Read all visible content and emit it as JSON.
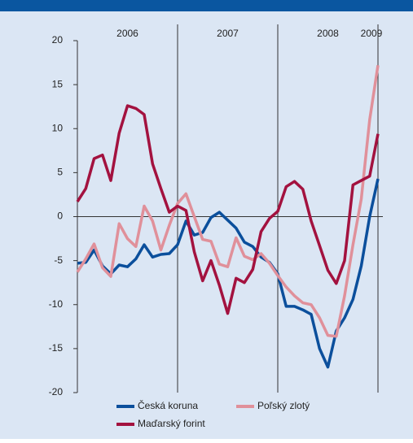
{
  "chart_data": {
    "type": "line",
    "categories": [
      null,
      null,
      null,
      null,
      null,
      null,
      null,
      null,
      null,
      null,
      null,
      null,
      null,
      null,
      null,
      null,
      null,
      null,
      null,
      null,
      null,
      null,
      null,
      null,
      null,
      null,
      null,
      null,
      null,
      null,
      null,
      null,
      null,
      null,
      null,
      null,
      null
    ],
    "year_labels": [
      "2006",
      "2007",
      "2008",
      "2009"
    ],
    "series": [
      {
        "name": "Česká koruna",
        "color": "#0b4f9c",
        "values": [
          -5.3,
          -5.2,
          -3.8,
          -5.6,
          -6.5,
          -5.5,
          -5.7,
          -4.8,
          -3.2,
          -4.6,
          -4.3,
          -4.2,
          -3.2,
          -0.5,
          -2.1,
          -1.8,
          -0.1,
          0.5,
          -0.4,
          -1.3,
          -2.9,
          -3.4,
          -4.6,
          -5.2,
          -6.5,
          -10.2,
          -10.2,
          -10.6,
          -11.1,
          -15,
          -17.1,
          -13,
          -11.5,
          -9.4,
          -5.6,
          0,
          4.3
        ]
      },
      {
        "name": "Poľský zlotý",
        "color": "#e0909a",
        "values": [
          -6.3,
          -4.8,
          -3.1,
          -5.8,
          -6.8,
          -0.8,
          -2.5,
          -3.4,
          1.2,
          -0.5,
          -3.8,
          -1,
          1.5,
          2.6,
          0,
          -2.6,
          -2.8,
          -5.4,
          -5.7,
          -2.4,
          -4.5,
          -4.9,
          -4.2,
          -5.3,
          -6.7,
          -8,
          -9,
          -9.8,
          -10,
          -11.5,
          -13.5,
          -13.6,
          -9,
          -3.2,
          2,
          11,
          17.2
        ]
      },
      {
        "name": "Maďarský forint",
        "color": "#a3123f",
        "values": [
          1.7,
          3.2,
          6.6,
          7,
          4.1,
          9.5,
          12.6,
          12.3,
          11.6,
          6,
          3.2,
          0.5,
          1.2,
          0.7,
          -4,
          -7.3,
          -5,
          -7.8,
          -11,
          -7,
          -7.5,
          -6,
          -1.7,
          -0.2,
          0.6,
          3.4,
          4,
          3.1,
          -0.5,
          -3.3,
          -6.1,
          -7.6,
          -5,
          3.6,
          4.1,
          4.6,
          9.4
        ]
      }
    ],
    "ylim": [
      -20,
      20
    ],
    "yticks": [
      -20,
      -15,
      -10,
      -5,
      0,
      5,
      10,
      15,
      20
    ]
  }
}
